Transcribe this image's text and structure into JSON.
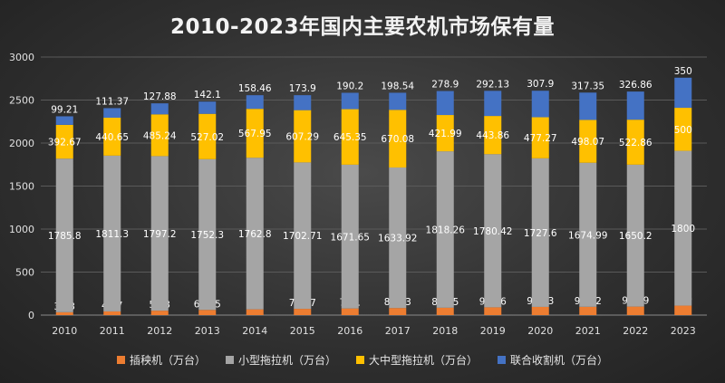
{
  "chart_data": {
    "type": "bar",
    "stacked": true,
    "title": "2010-2023年国内主要农机市场保有量",
    "categories": [
      "2010",
      "2011",
      "2012",
      "2013",
      "2014",
      "2015",
      "2016",
      "2017",
      "2018",
      "2019",
      "2020",
      "2021",
      "2022",
      "2023"
    ],
    "ylim": [
      0,
      3000
    ],
    "yticks": [
      0,
      500,
      1000,
      1500,
      2000,
      2500,
      3000
    ],
    "grid": true,
    "legend_position": "bottom",
    "series": [
      {
        "name": "插秧机（万台）",
        "color": "#ed7d31",
        "values": [
          33.3,
          42.7,
          51.3,
          60.45,
          67,
          72.57,
          77.1,
          82.23,
          85.65,
          90.66,
          95.33,
          96.32,
          98.79,
          110
        ],
        "labels": [
          "33.3",
          "42.7",
          "51.3",
          "60.45",
          "67",
          "72.57",
          "77.1",
          "82.23",
          "85.65",
          "90.66",
          "95.33",
          "96.32",
          "98.79",
          "110"
        ]
      },
      {
        "name": "小型拖拉机（万台）",
        "color": "#a5a5a5",
        "values": [
          1785.8,
          1811.3,
          1797.2,
          1752.3,
          1762.8,
          1702.71,
          1671.65,
          1633.92,
          1818.26,
          1780.42,
          1727.6,
          1674.99,
          1650.2,
          1800
        ],
        "labels": [
          "1785.8",
          "1811.3",
          "1797.2",
          "1752.3",
          "1762.8",
          "1702.71",
          "1671.65",
          "1633.92",
          "1818.26",
          "1780.42",
          "1727.6",
          "1674.99",
          "1650.2",
          "1800"
        ]
      },
      {
        "name": "大中型拖拉机（万台）",
        "color": "#ffc000",
        "values": [
          392.67,
          440.65,
          485.24,
          527.02,
          567.95,
          607.29,
          645.35,
          670.08,
          421.99,
          443.86,
          477.27,
          498.07,
          522.86,
          500
        ],
        "labels": [
          "392.67",
          "440.65",
          "485.24",
          "527.02",
          "567.95",
          "607.29",
          "645.35",
          "670.08",
          "421.99",
          "443.86",
          "477.27",
          "498.07",
          "522.86",
          "500"
        ]
      },
      {
        "name": "联合收割机（万台）",
        "color": "#4472c4",
        "values": [
          99.21,
          111.37,
          127.88,
          142.1,
          158.46,
          173.9,
          190.2,
          198.54,
          278.9,
          292.13,
          307.9,
          317.35,
          326.86,
          350
        ],
        "labels": [
          "99.21",
          "111.37",
          "127.88",
          "142.1",
          "158.46",
          "173.9",
          "190.2",
          "198.54",
          "278.9",
          "292.13",
          "307.9",
          "317.35",
          "326.86",
          "350"
        ]
      }
    ]
  }
}
